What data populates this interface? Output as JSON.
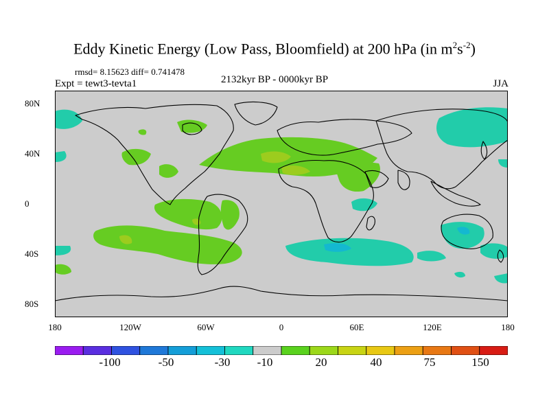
{
  "title": {
    "main": "Eddy Kinetic Energy (Low Pass, Bloomfield) at 200 hPa (in m",
    "sup1": "2",
    "mid": "s",
    "sup2": "-2",
    "end": ")"
  },
  "stats": "rmsd= 8.15623 diff= 0.741478",
  "expt": "Expt = tewt3-tevta1",
  "period": "2132kyr BP - 0000kyr BP",
  "season": "JJA",
  "y_axis": [
    "80N",
    "40N",
    "0",
    "40S",
    "80S"
  ],
  "x_axis": [
    "180",
    "120W",
    "60W",
    "0",
    "60E",
    "120E",
    "180"
  ],
  "colorbar": {
    "colors": [
      "#9a1cf0",
      "#5a2ee0",
      "#2f52e0",
      "#1f78d8",
      "#149ed8",
      "#14c0d8",
      "#20d8c0",
      "#cccccc",
      "#5ad21e",
      "#9cd81a",
      "#c8d414",
      "#e8c814",
      "#eca014",
      "#e87814",
      "#e05014",
      "#d81c14"
    ],
    "labels": [
      "-100",
      "-50",
      "-30",
      "-10",
      "20",
      "40",
      "75",
      "150"
    ]
  },
  "colors": {
    "background": "#cccccc",
    "positive_low": "#66cc22",
    "positive_mid": "#9ccc1e",
    "negative_low": "#22ccaa",
    "negative_mid": "#14b8d0",
    "coast": "#000000"
  }
}
